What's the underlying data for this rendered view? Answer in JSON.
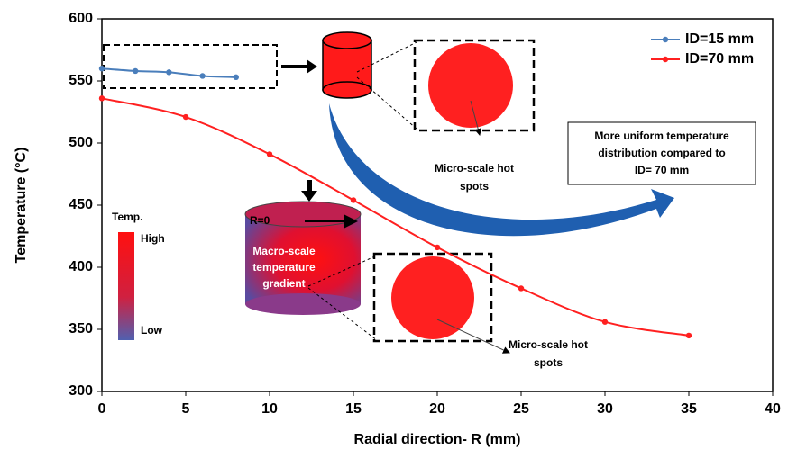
{
  "chart_data": {
    "type": "line",
    "x_label": "Radial direction- R (mm)",
    "y_label": "Temperature (°C)",
    "series": [
      {
        "name": "ID=15 mm",
        "color": "#4a7ebb",
        "x": [
          0,
          2,
          4,
          6,
          8
        ],
        "values": [
          560,
          558,
          557,
          554,
          553
        ]
      },
      {
        "name": "ID=70 mm",
        "color": "#ff2020",
        "x": [
          0,
          5,
          10,
          15,
          20,
          25,
          30,
          35
        ],
        "values": [
          536,
          521,
          491,
          454,
          416,
          383,
          356,
          345
        ]
      }
    ],
    "xlim": [
      0,
      40
    ],
    "xticks": [
      0,
      5,
      10,
      15,
      20,
      25,
      30,
      35,
      40
    ],
    "ylim": [
      300,
      600
    ],
    "yticks": [
      300,
      350,
      400,
      450,
      500,
      550,
      600
    ],
    "grid": false,
    "legend": "upper right",
    "annotations": {
      "uniform": [
        "More uniform temperature",
        "distribution compared to",
        "ID= 70 mm"
      ],
      "hot_spots_top": [
        "Micro-scale hot",
        "spots"
      ],
      "hot_spots_bottom": [
        "Micro-scale hot",
        "spots"
      ],
      "macro": [
        "Macro-scale",
        "temperature",
        "gradient"
      ],
      "r0": "R=0",
      "scale_title": "Temp.",
      "scale_high": "High",
      "scale_low": "Low"
    }
  }
}
